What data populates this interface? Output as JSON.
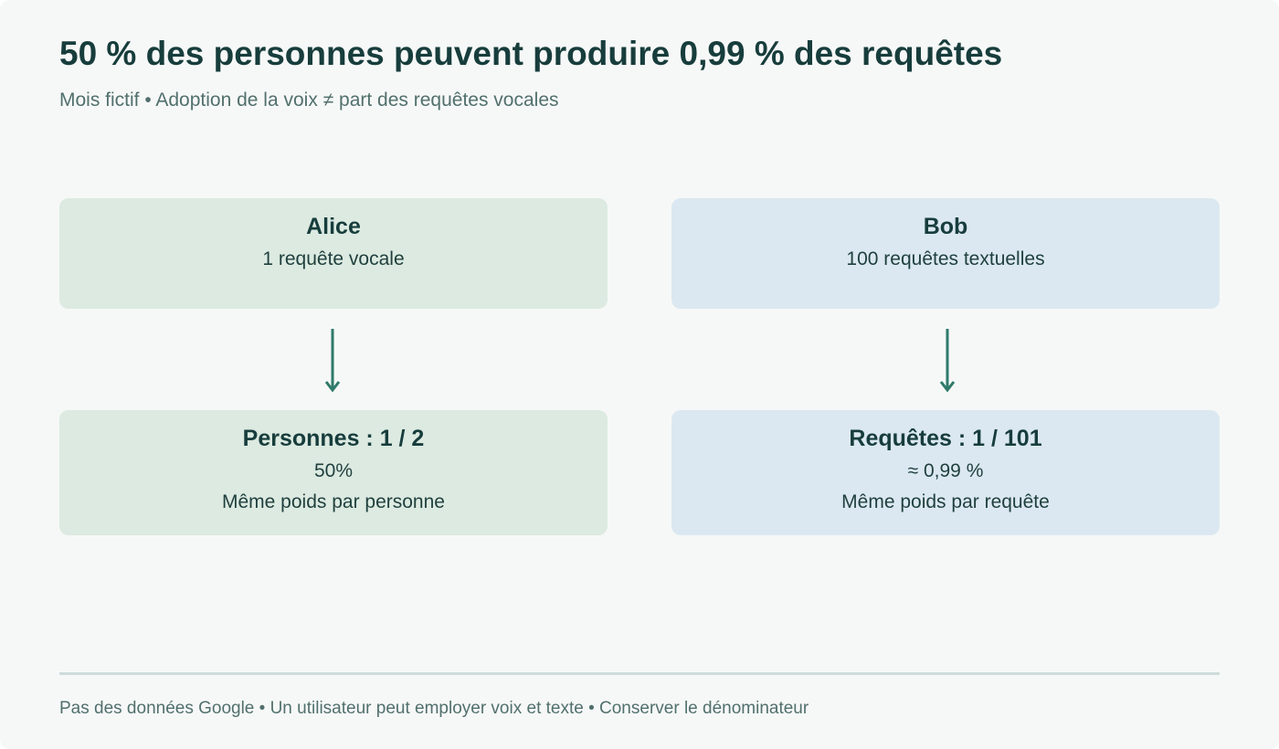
{
  "header": {
    "title": "50 % des personnes peuvent produire 0,99 % des requêtes",
    "subtitle": "Mois fictif • Adoption de la voix ≠ part des requêtes vocales"
  },
  "users": [
    {
      "name": "Alice",
      "activity": "1 requête vocale",
      "color": "#dceae1"
    },
    {
      "name": "Bob",
      "activity": "100 requêtes textuelles",
      "color": "#dbe8f1"
    }
  ],
  "results": [
    {
      "heading": "Personnes : 1 / 2",
      "value": "50%",
      "note": "Même poids par personne"
    },
    {
      "heading": "Requêtes : 1 / 101",
      "value": "≈ 0,99 %",
      "note": "Même poids par requête"
    }
  ],
  "arrow_color": "#2f7a6b",
  "footer": {
    "text": "Pas des données Google • Un utilisateur peut employer voix et texte • Conserver le dénominateur"
  }
}
